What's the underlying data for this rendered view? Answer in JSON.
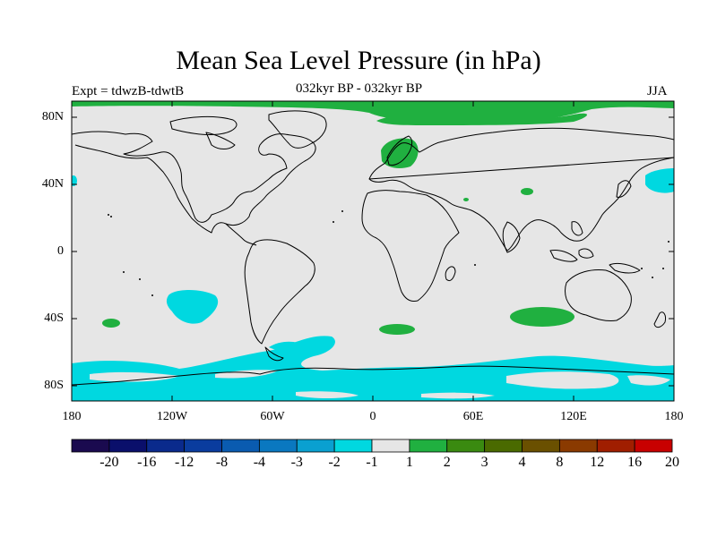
{
  "title": "Mean Sea Level Pressure (in hPa)",
  "experiment_label": "Expt = tdwzB-tdwtB",
  "period_label": "032kyr BP - 032kyr BP",
  "season_label": "JJA",
  "lat_ticks": [
    "80N",
    "40N",
    "0",
    "40S",
    "80S"
  ],
  "lon_ticks": [
    "180",
    "120W",
    "60W",
    "0",
    "60E",
    "120E",
    "180"
  ],
  "colorbar": {
    "labels": [
      "-20",
      "-16",
      "-12",
      "-8",
      "-4",
      "-3",
      "-2",
      "-1",
      "1",
      "2",
      "3",
      "4",
      "8",
      "12",
      "16",
      "20"
    ],
    "colors": [
      "#1a0a4f",
      "#0a0f6b",
      "#0a2a8c",
      "#0a3c9e",
      "#0a5bb0",
      "#0a78c0",
      "#0aa0d0",
      "#00d8e0",
      "#e6e6e6",
      "#20b040",
      "#3a8a10",
      "#4a6a00",
      "#6a5000",
      "#8a3a00",
      "#a01e00",
      "#c80000"
    ]
  },
  "colors": {
    "background_field": "#e6e6e6",
    "negative_anomaly": "#00d8e0",
    "positive_anomaly": "#20b040"
  }
}
